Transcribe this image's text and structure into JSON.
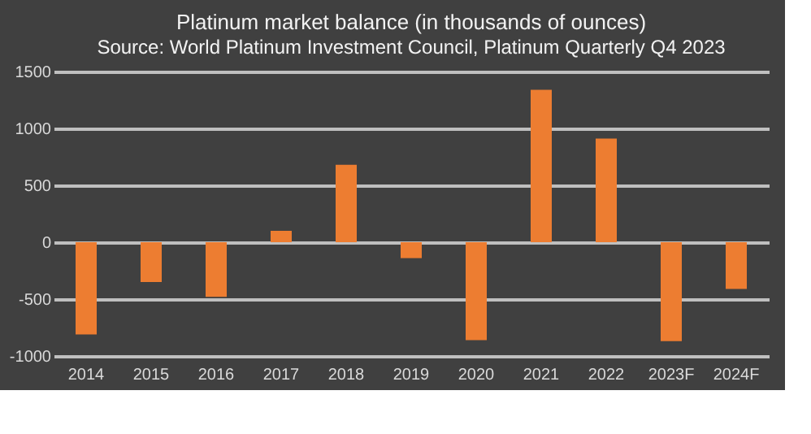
{
  "chart_data": {
    "type": "bar",
    "title": "Platinum market balance (in thousands of ounces)",
    "subtitle": "Source: World Platinum Investment Council, Platinum Quarterly Q4 2023",
    "categories": [
      "2014",
      "2015",
      "2016",
      "2017",
      "2018",
      "2019",
      "2020",
      "2021",
      "2022",
      "2023F",
      "2024F"
    ],
    "values": [
      -810,
      -350,
      -480,
      100,
      680,
      -140,
      -860,
      1340,
      910,
      -870,
      -410
    ],
    "color": "#ed7d31",
    "ylim": [
      -1000,
      1500
    ],
    "yticks": [
      -1000,
      -500,
      0,
      500,
      1000,
      1500
    ],
    "grid": "y"
  }
}
